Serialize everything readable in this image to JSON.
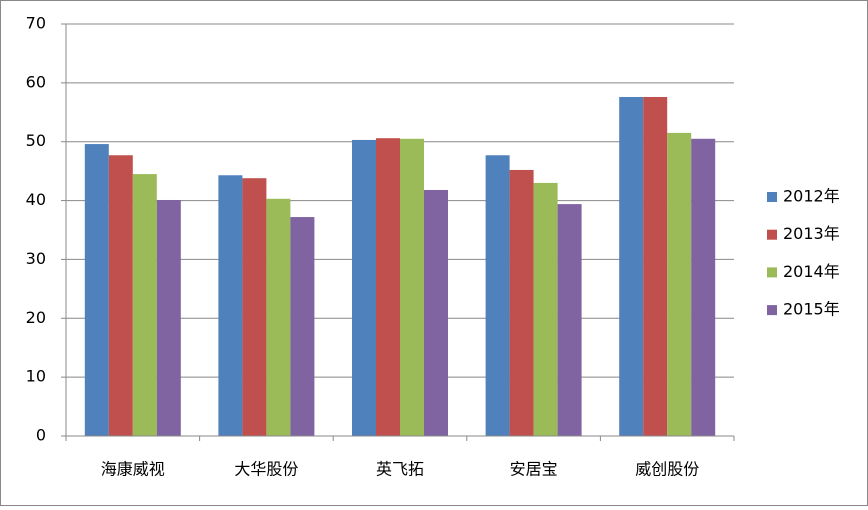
{
  "chart_data": {
    "type": "bar",
    "categories": [
      "海康威视",
      "大华股份",
      "英飞拓",
      "安居宝",
      "威创股份"
    ],
    "series": [
      {
        "name": "2012年",
        "color": "#4f81bd",
        "values": [
          49.6,
          44.3,
          50.3,
          47.7,
          57.6
        ]
      },
      {
        "name": "2013年",
        "color": "#c0504d",
        "values": [
          47.7,
          43.8,
          50.6,
          45.2,
          57.6
        ]
      },
      {
        "name": "2014年",
        "color": "#9bbb59",
        "values": [
          44.5,
          40.3,
          50.5,
          43.0,
          51.5
        ]
      },
      {
        "name": "2015年",
        "color": "#8064a2",
        "values": [
          40.1,
          37.2,
          41.8,
          39.4,
          50.5
        ]
      }
    ],
    "ylim": [
      0,
      70
    ],
    "yticks": [
      0,
      10,
      20,
      30,
      40,
      50,
      60,
      70
    ],
    "grid": true,
    "legend": "right"
  }
}
